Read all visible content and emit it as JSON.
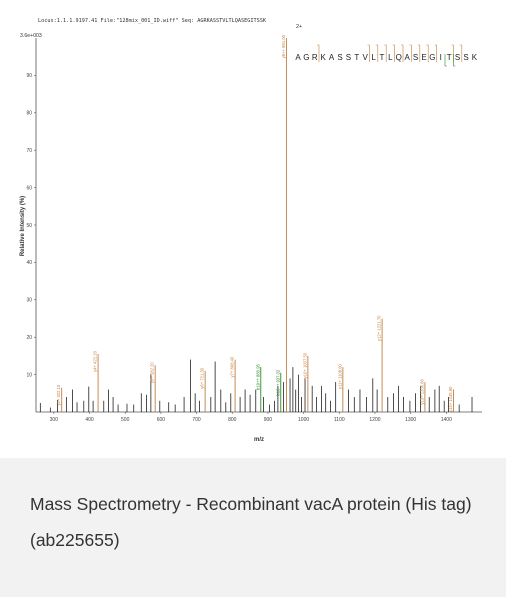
{
  "figure": {
    "header": "Locus:1.1.1.9197.41 File:\"128mix_001_ID.wiff\"  Seq: AGRKASSTVLTLQASEGITSSK",
    "ytop_label": "3.6e+003"
  },
  "chart_data": {
    "type": "bar",
    "title": "",
    "xlabel": "m/z",
    "ylabel": "Relative Intensity (%)",
    "xlim": [
      250,
      1500
    ],
    "ylim": [
      0,
      100
    ],
    "xticks": [
      300,
      400,
      500,
      600,
      700,
      800,
      900,
      1000,
      1100,
      1200,
      1300,
      1400
    ],
    "yticks": [
      10,
      20,
      30,
      40,
      50,
      60,
      70,
      80,
      90
    ],
    "sequence": "AGRKASSTVLTLQASEGITSSK",
    "precursor_charge": "2+",
    "peaks": [
      {
        "mz": 262,
        "i": 2.4,
        "c": "#000"
      },
      {
        "mz": 290,
        "i": 1.2,
        "c": "#000"
      },
      {
        "mz": 310,
        "i": 3.2,
        "c": "#000"
      },
      {
        "mz": 322,
        "i": 6.5,
        "c": "#c08040"
      },
      {
        "mz": 335,
        "i": 4.0,
        "c": "#000"
      },
      {
        "mz": 352,
        "i": 6.0,
        "c": "#000"
      },
      {
        "mz": 365,
        "i": 2.6,
        "c": "#000"
      },
      {
        "mz": 384,
        "i": 3.0,
        "c": "#000"
      },
      {
        "mz": 398,
        "i": 6.8,
        "c": "#000"
      },
      {
        "mz": 410,
        "i": 3.0,
        "c": "#000"
      },
      {
        "mz": 424,
        "i": 15.5,
        "c": "#c08040"
      },
      {
        "mz": 440,
        "i": 3.0,
        "c": "#000"
      },
      {
        "mz": 453,
        "i": 6.0,
        "c": "#000"
      },
      {
        "mz": 466,
        "i": 4.0,
        "c": "#000"
      },
      {
        "mz": 480,
        "i": 2.0,
        "c": "#000"
      },
      {
        "mz": 505,
        "i": 2.2,
        "c": "#000"
      },
      {
        "mz": 524,
        "i": 2.0,
        "c": "#000"
      },
      {
        "mz": 545,
        "i": 5.0,
        "c": "#000"
      },
      {
        "mz": 560,
        "i": 4.6,
        "c": "#000"
      },
      {
        "mz": 572,
        "i": 10.0,
        "c": "#000"
      },
      {
        "mz": 584,
        "i": 12.5,
        "c": "#c08040"
      },
      {
        "mz": 597,
        "i": 3.0,
        "c": "#000"
      },
      {
        "mz": 622,
        "i": 2.6,
        "c": "#000"
      },
      {
        "mz": 640,
        "i": 2.0,
        "c": "#000"
      },
      {
        "mz": 665,
        "i": 4.0,
        "c": "#000"
      },
      {
        "mz": 683,
        "i": 14.0,
        "c": "#000"
      },
      {
        "mz": 696,
        "i": 5.0,
        "c": "#000"
      },
      {
        "mz": 708,
        "i": 3.0,
        "c": "#000"
      },
      {
        "mz": 724,
        "i": 11.0,
        "c": "#c08040"
      },
      {
        "mz": 740,
        "i": 4.0,
        "c": "#000"
      },
      {
        "mz": 752,
        "i": 13.5,
        "c": "#000"
      },
      {
        "mz": 768,
        "i": 6.0,
        "c": "#000"
      },
      {
        "mz": 782,
        "i": 2.6,
        "c": "#000"
      },
      {
        "mz": 796,
        "i": 5.0,
        "c": "#000"
      },
      {
        "mz": 808,
        "i": 14.0,
        "c": "#c08040"
      },
      {
        "mz": 822,
        "i": 4.0,
        "c": "#000"
      },
      {
        "mz": 836,
        "i": 6.0,
        "c": "#000"
      },
      {
        "mz": 850,
        "i": 4.6,
        "c": "#000"
      },
      {
        "mz": 866,
        "i": 6.0,
        "c": "#000"
      },
      {
        "mz": 880,
        "i": 12.0,
        "c": "#2a8a2a"
      },
      {
        "mz": 888,
        "i": 4.0,
        "c": "#000"
      },
      {
        "mz": 904,
        "i": 2.0,
        "c": "#000"
      },
      {
        "mz": 918,
        "i": 3.0,
        "c": "#000"
      },
      {
        "mz": 928,
        "i": 7.0,
        "c": "#000"
      },
      {
        "mz": 936,
        "i": 10.5,
        "c": "#2a8a2a"
      },
      {
        "mz": 944,
        "i": 8.0,
        "c": "#000"
      },
      {
        "mz": 952,
        "i": 100,
        "c": "#c08040"
      },
      {
        "mz": 962,
        "i": 9.0,
        "c": "#000"
      },
      {
        "mz": 970,
        "i": 12.0,
        "c": "#000"
      },
      {
        "mz": 978,
        "i": 6.0,
        "c": "#000"
      },
      {
        "mz": 986,
        "i": 10.0,
        "c": "#000"
      },
      {
        "mz": 994,
        "i": 4.0,
        "c": "#000"
      },
      {
        "mz": 1004,
        "i": 9.0,
        "c": "#000"
      },
      {
        "mz": 1012,
        "i": 15.0,
        "c": "#c08040"
      },
      {
        "mz": 1024,
        "i": 7.0,
        "c": "#000"
      },
      {
        "mz": 1036,
        "i": 4.0,
        "c": "#000"
      },
      {
        "mz": 1050,
        "i": 7.0,
        "c": "#000"
      },
      {
        "mz": 1062,
        "i": 5.0,
        "c": "#000"
      },
      {
        "mz": 1075,
        "i": 3.0,
        "c": "#000"
      },
      {
        "mz": 1090,
        "i": 8.0,
        "c": "#000"
      },
      {
        "mz": 1110,
        "i": 12.0,
        "c": "#c08040"
      },
      {
        "mz": 1126,
        "i": 6.0,
        "c": "#000"
      },
      {
        "mz": 1142,
        "i": 4.0,
        "c": "#000"
      },
      {
        "mz": 1158,
        "i": 6.0,
        "c": "#000"
      },
      {
        "mz": 1176,
        "i": 4.0,
        "c": "#000"
      },
      {
        "mz": 1194,
        "i": 9.0,
        "c": "#000"
      },
      {
        "mz": 1206,
        "i": 6.0,
        "c": "#000"
      },
      {
        "mz": 1220,
        "i": 25.0,
        "c": "#c08040"
      },
      {
        "mz": 1236,
        "i": 4.0,
        "c": "#000"
      },
      {
        "mz": 1252,
        "i": 5.0,
        "c": "#000"
      },
      {
        "mz": 1266,
        "i": 7.0,
        "c": "#000"
      },
      {
        "mz": 1280,
        "i": 4.0,
        "c": "#000"
      },
      {
        "mz": 1298,
        "i": 3.0,
        "c": "#000"
      },
      {
        "mz": 1314,
        "i": 5.0,
        "c": "#000"
      },
      {
        "mz": 1328,
        "i": 7.0,
        "c": "#000"
      },
      {
        "mz": 1340,
        "i": 8.0,
        "c": "#c08040"
      },
      {
        "mz": 1352,
        "i": 4.0,
        "c": "#000"
      },
      {
        "mz": 1368,
        "i": 6.0,
        "c": "#000"
      },
      {
        "mz": 1380,
        "i": 7.0,
        "c": "#000"
      },
      {
        "mz": 1394,
        "i": 3.0,
        "c": "#000"
      },
      {
        "mz": 1406,
        "i": 4.0,
        "c": "#000"
      },
      {
        "mz": 1420,
        "i": 6.0,
        "c": "#c08040"
      },
      {
        "mz": 1436,
        "i": 2.0,
        "c": "#000"
      },
      {
        "mz": 1472,
        "i": 4.0,
        "c": "#000"
      }
    ],
    "annotations": [
      {
        "mz": 322,
        "label": "y3+ 322.10",
        "c": "#c08040"
      },
      {
        "mz": 424,
        "label": "y4+ 422.20",
        "c": "#c08040"
      },
      {
        "mz": 584,
        "label": "y5+ 582.20",
        "c": "#c08040"
      },
      {
        "mz": 724,
        "label": "y6+ 721.30",
        "c": "#c08040"
      },
      {
        "mz": 808,
        "label": "y7+ 808.40",
        "c": "#c08040"
      },
      {
        "mz": 880,
        "label": "b19++ 880.95",
        "c": "#2a8a2a"
      },
      {
        "mz": 936,
        "label": "b18++ 937.02",
        "c": "#2a8a2a"
      },
      {
        "mz": 952,
        "label": "y9++ 951.00",
        "c": "#c08040"
      },
      {
        "mz": 1012,
        "label": "y10+ 1007.50",
        "c": "#c08040"
      },
      {
        "mz": 1110,
        "label": "y11+ 1108.60",
        "c": "#c08040"
      },
      {
        "mz": 1220,
        "label": "y12+ 1221.70",
        "c": "#c08040"
      },
      {
        "mz": 1340,
        "label": "y13+ 1336.80",
        "c": "#c08040"
      },
      {
        "mz": 1420,
        "label": "y14+ 1435.90",
        "c": "#c08040"
      }
    ]
  },
  "caption": {
    "text": "Mass Spectrometry - Recombinant vacA protein (His tag) (ab225655)"
  },
  "colors": {
    "y_ion": "#c08040",
    "b_ion": "#2a8a2a",
    "peak": "#000000",
    "caption_bg": "#f2f2f2"
  }
}
